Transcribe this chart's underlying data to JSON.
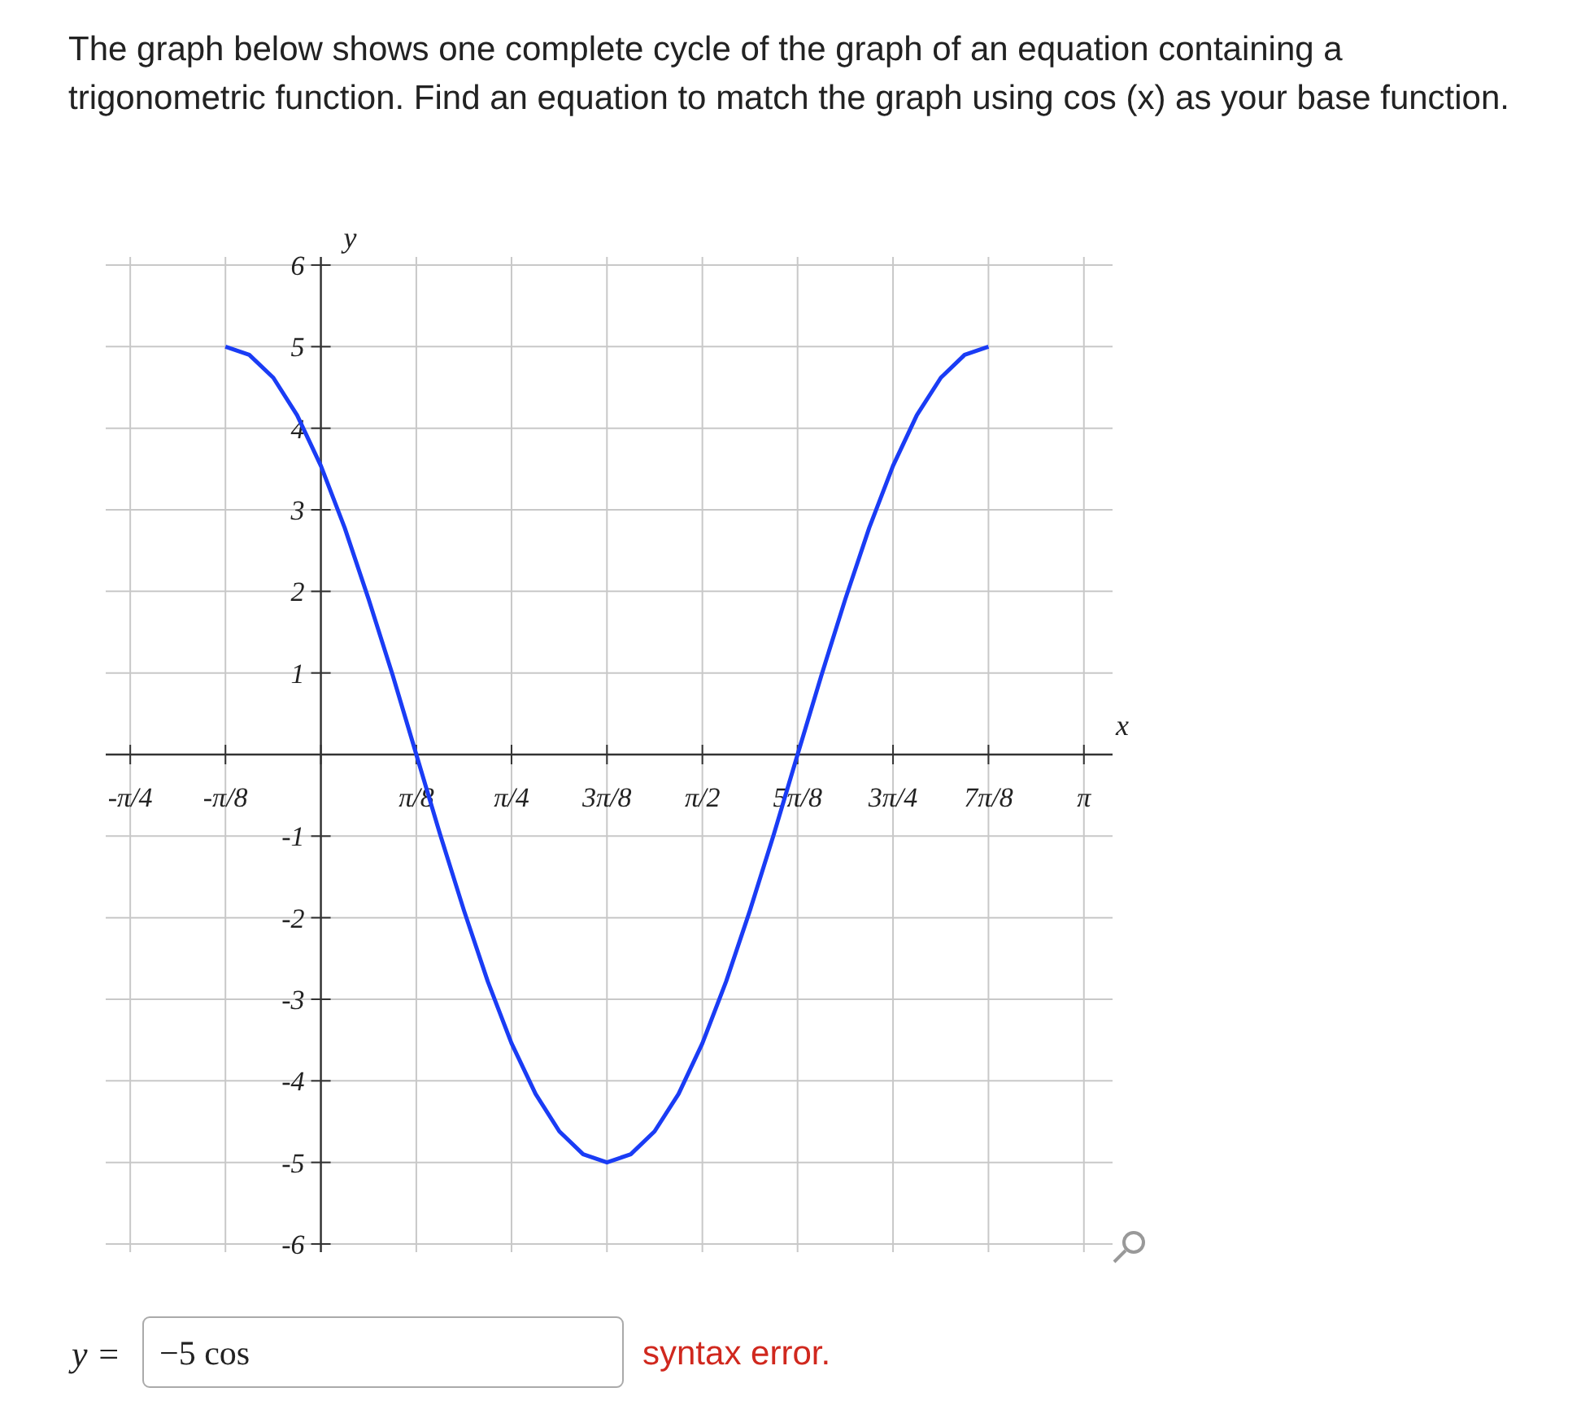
{
  "chart_data": {
    "type": "line",
    "title": "The graph below shows one complete cycle of the graph of an equation containing a trigonometric function. Find an equation to match the graph using cos (x) as your base function.",
    "xlabel": "x",
    "ylabel": "y",
    "x": [
      -0.393,
      -0.295,
      -0.196,
      -0.098,
      0,
      0.098,
      0.196,
      0.295,
      0.393,
      0.491,
      0.589,
      0.687,
      0.785,
      0.884,
      0.982,
      1.08,
      1.178,
      1.276,
      1.374,
      1.473,
      1.571,
      1.669,
      1.767,
      1.865,
      1.963,
      2.062,
      2.16,
      2.258,
      2.356,
      2.454,
      2.553,
      2.651,
      2.749
    ],
    "series": [
      {
        "color": "#1a3cf5",
        "values": [
          5,
          4.9,
          4.62,
          4.16,
          3.54,
          2.78,
          1.91,
          0.98,
          0,
          -0.98,
          -1.91,
          -2.78,
          -3.54,
          -4.16,
          -4.62,
          -4.9,
          -5,
          -4.9,
          -4.62,
          -4.16,
          -3.54,
          -2.78,
          -1.91,
          -0.98,
          0,
          0.98,
          1.91,
          2.78,
          3.54,
          4.16,
          4.62,
          4.9,
          5
        ]
      }
    ],
    "xlim": [
      -0.886,
      3.26
    ],
    "ylim": [
      -6.1,
      6.1
    ],
    "xticks": [
      {
        "value": -0.785,
        "label": "-π/4"
      },
      {
        "value": -0.393,
        "label": "-π/8"
      },
      {
        "value": 0,
        "label": null
      },
      {
        "value": 0.393,
        "label": "π/8"
      },
      {
        "value": 0.785,
        "label": "π/4"
      },
      {
        "value": 1.178,
        "label": "3π/8"
      },
      {
        "value": 1.571,
        "label": "π/2"
      },
      {
        "value": 1.963,
        "label": "5π/8"
      },
      {
        "value": 2.356,
        "label": "3π/4"
      },
      {
        "value": 2.749,
        "label": "7π/8"
      },
      {
        "value": 3.142,
        "label": "π"
      }
    ],
    "yticks": [
      -6,
      -5,
      -4,
      -3,
      -2,
      -1,
      {
        "value": 0,
        "label": null
      },
      1,
      2,
      3,
      4,
      5,
      6
    ],
    "grid": true,
    "marker": "none",
    "line_style": "solid",
    "annotations": [
      "y =",
      "−5 cos",
      "syntax error."
    ]
  }
}
